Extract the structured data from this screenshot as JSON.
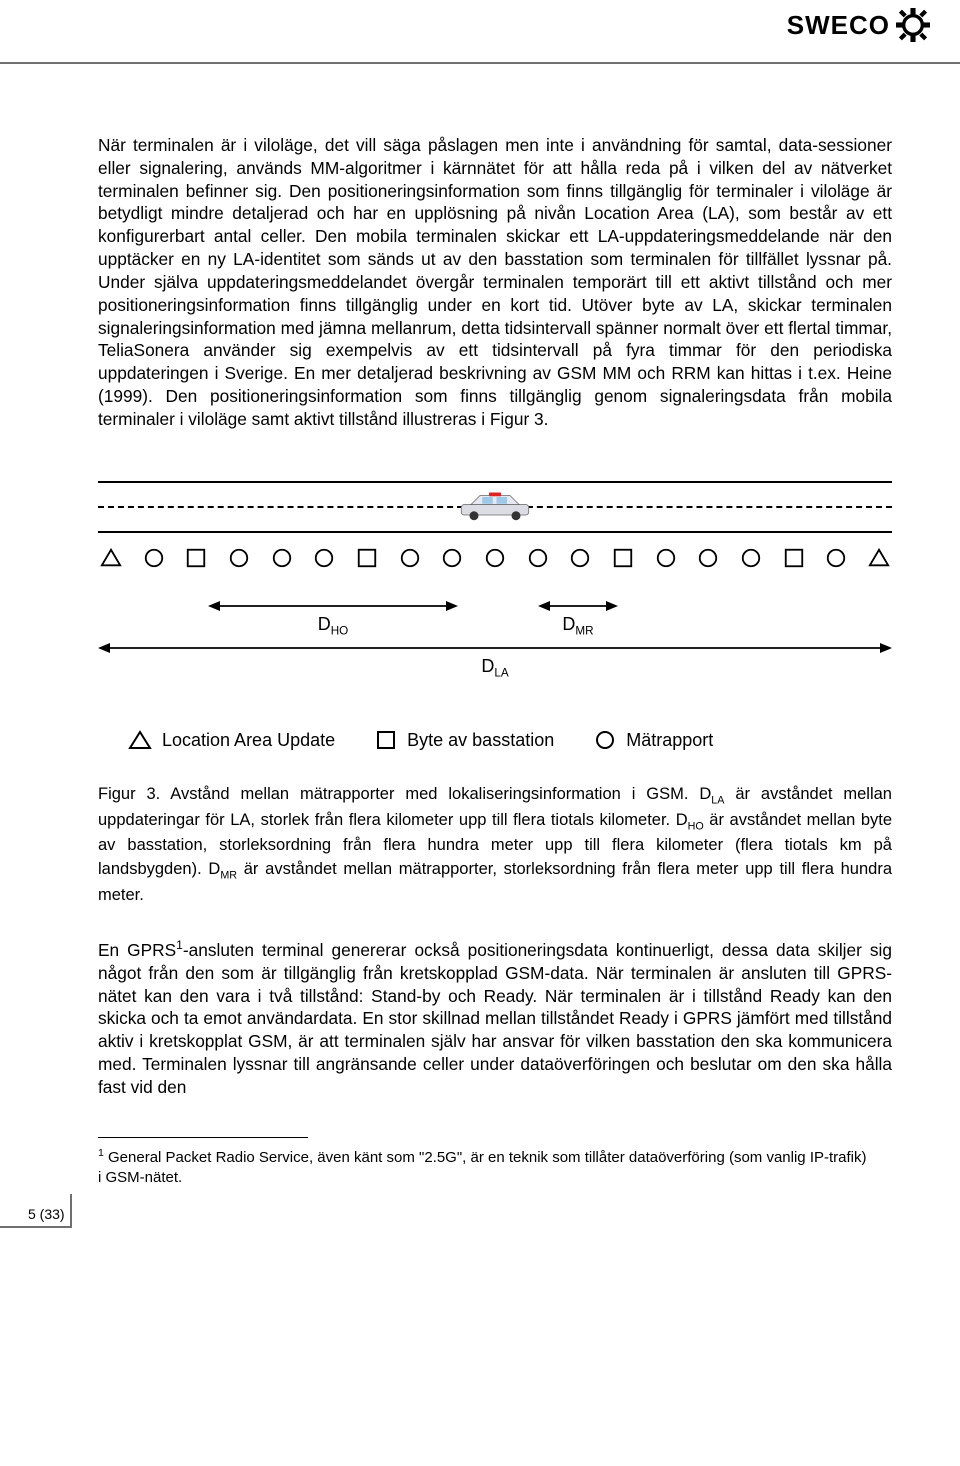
{
  "brand": {
    "text": "SWECO"
  },
  "body_text": "När terminalen är i viloläge, det vill säga påslagen men inte i användning för samtal, data-sessioner eller signalering, används MM-algoritmer i kärnnätet för att hålla reda på i vilken del av nätverket terminalen befinner sig. Den positioneringsinformation som finns tillgänglig för terminaler i viloläge är betydligt mindre detaljerad och har en upplösning på nivån Location Area (LA), som består av ett konfigurerbart antal celler. Den mobila terminalen skickar ett LA-uppdateringsmeddelande när den upptäcker en ny LA-identitet som sänds ut av den basstation som terminalen för tillfället lyssnar på. Under själva uppdateringsmeddelandet övergår terminalen temporärt till ett aktivt tillstånd och mer positioneringsinformation finns tillgänglig under en kort tid. Utöver byte av LA, skickar terminalen signaleringsinformation med jämna mellanrum, detta tidsintervall spänner normalt över ett flertal timmar, TeliaSonera använder sig exempelvis av ett tidsintervall på fyra timmar för den periodiska uppdateringen i Sverige. En mer detaljerad beskrivning av GSM MM och RRM kan hittas i t.ex. Heine (1999). Den positioneringsinformation som finns tillgänglig genom signaleringsdata från mobila terminaler i viloläge samt aktivt tillstånd illustreras i Figur 3.",
  "diagram": {
    "symbols": [
      "tri",
      "cir",
      "sq",
      "cir",
      "cir",
      "cir",
      "sq",
      "cir",
      "cir",
      "cir",
      "cir",
      "cir",
      "sq",
      "cir",
      "cir",
      "cir",
      "sq",
      "cir",
      "tri"
    ],
    "dho_label": "D",
    "dho_sub": "HO",
    "dmr_label": "D",
    "dmr_sub": "MR",
    "dla_label": "D",
    "dla_sub": "LA",
    "legend": [
      {
        "shape": "tri",
        "label": "Location Area Update"
      },
      {
        "shape": "sq",
        "label": "Byte av basstation"
      },
      {
        "shape": "cir",
        "label": "Mätrapport"
      }
    ],
    "colors": {
      "line": "#000000",
      "background": "#ffffff"
    }
  },
  "caption_prefix": "Figur 3. Avstånd mellan mätrapporter med lokaliseringsinformation i GSM. ",
  "caption_dla": "D",
  "caption_dla_sub": "LA",
  "caption_mid1": " är avståndet mellan uppdateringar för LA, storlek från flera kilometer upp till flera tiotals kilometer. ",
  "caption_dho": "D",
  "caption_dho_sub": "HO",
  "caption_mid2": " är avståndet mellan byte av basstation, storleksordning från flera hundra meter upp till flera kilometer (flera tiotals km på landsbygden). ",
  "caption_dmr": "D",
  "caption_dmr_sub": "MR",
  "caption_tail": " är avståndet mellan mätrapporter, storleksordning från flera meter upp till flera hundra meter.",
  "para2_pre": "En GPRS",
  "para2_sup": "1",
  "para2_post": "-ansluten terminal genererar också positioneringsdata kontinuerligt, dessa data skiljer sig något från den som är tillgänglig från kretskopplad GSM-data. När terminalen är ansluten till GPRS-nätet kan den vara i två tillstånd: Stand-by och Ready. När terminalen är i tillstånd Ready kan den skicka och ta emot användardata. En stor skillnad mellan tillståndet Ready i GPRS jämfört med tillstånd aktiv i kretskopplat GSM, är att terminalen själv har ansvar för vilken basstation den ska kommunicera med. Terminalen lyssnar till angränsande celler under dataöverföringen och beslutar om den ska hålla fast vid den",
  "footnote_num": "1",
  "footnote_text": " General Packet Radio Service, även känt som \"2.5G\", är en teknik som tillåter dataöverföring (som vanlig IP-trafik) i GSM-nätet.",
  "page_number": "5 (33)"
}
